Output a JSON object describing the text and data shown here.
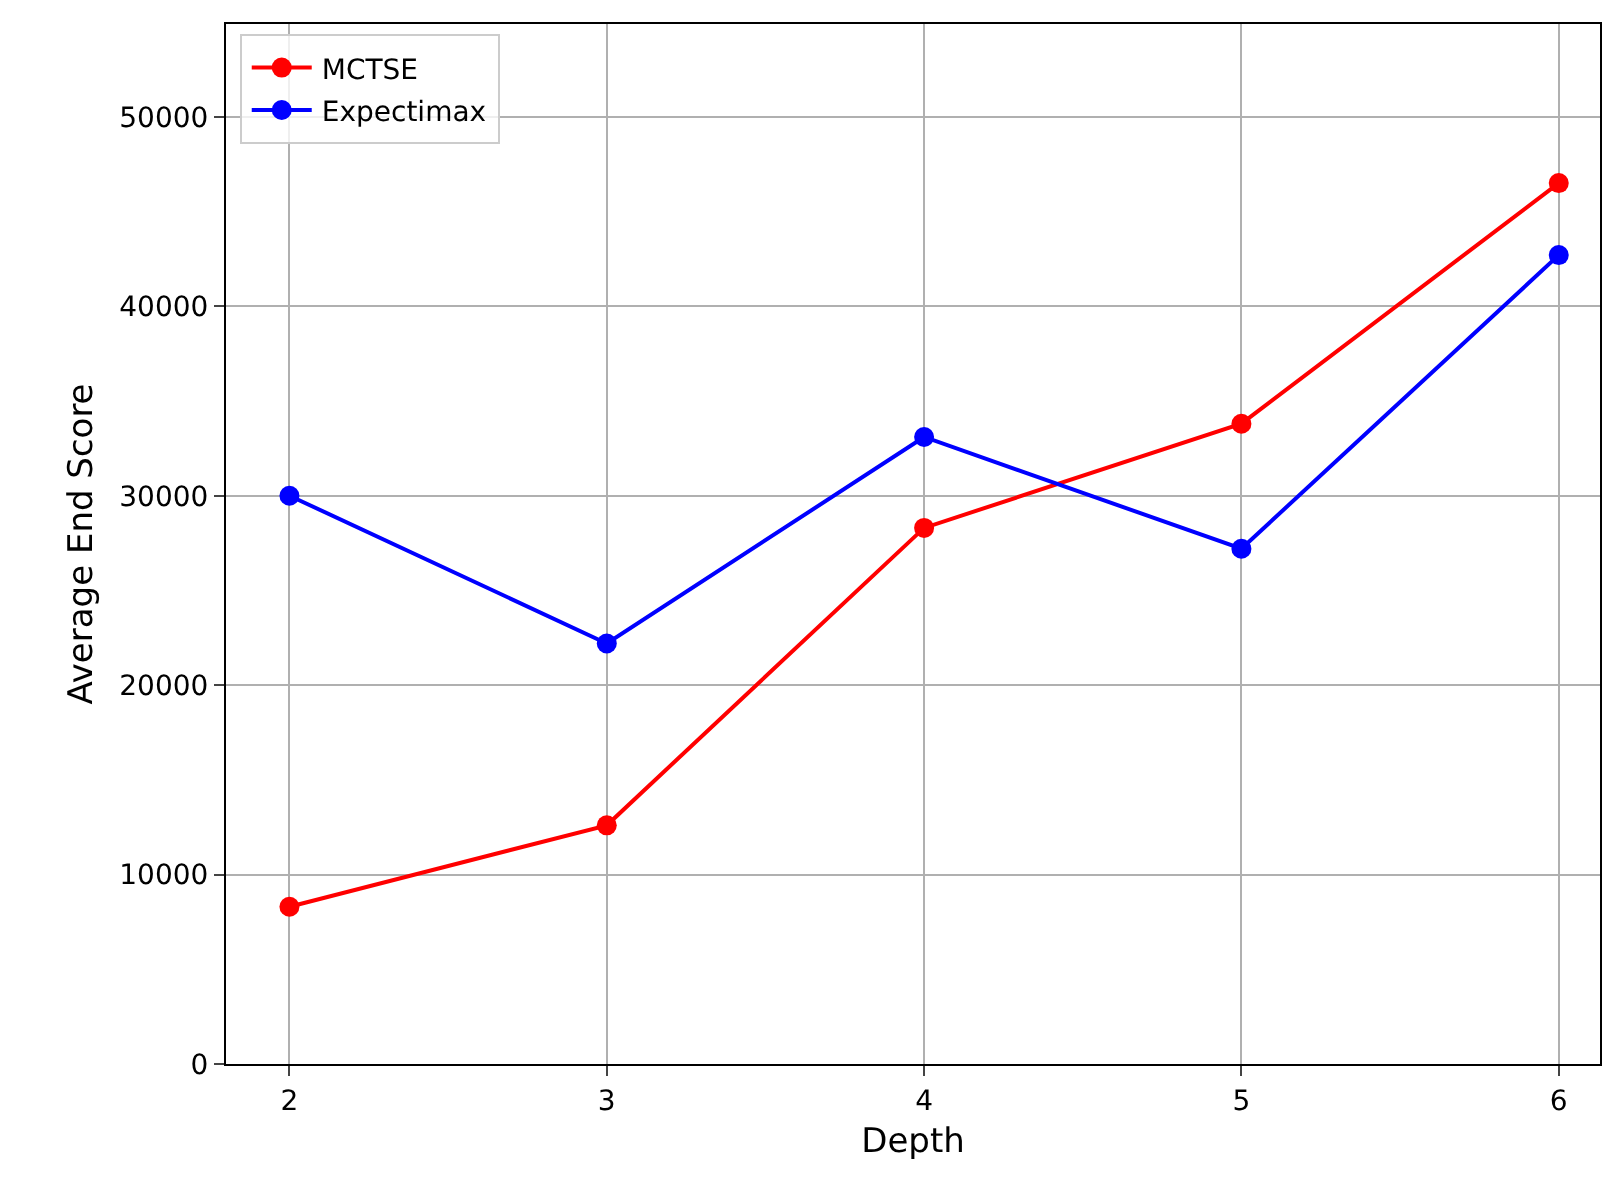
{
  "chart_data": {
    "type": "line",
    "xlabel": "Depth",
    "ylabel": "Average End Score",
    "x": [
      2,
      3,
      4,
      5,
      6
    ],
    "series": [
      {
        "name": "MCTSE",
        "color": "#ff0000",
        "values": [
          8300,
          12600,
          28300,
          33800,
          46500
        ]
      },
      {
        "name": "Expectimax",
        "color": "#0000ff",
        "values": [
          30000,
          22200,
          33100,
          27200,
          42700
        ]
      }
    ],
    "xlim": [
      1.8,
      6.13
    ],
    "xticks": [
      2,
      3,
      4,
      5,
      6
    ],
    "ylim": [
      0,
      54900
    ],
    "yticks": [
      0,
      10000,
      20000,
      30000,
      40000,
      50000
    ],
    "grid": true,
    "legend": "top left",
    "marker": "circle",
    "line_style": "solid"
  }
}
